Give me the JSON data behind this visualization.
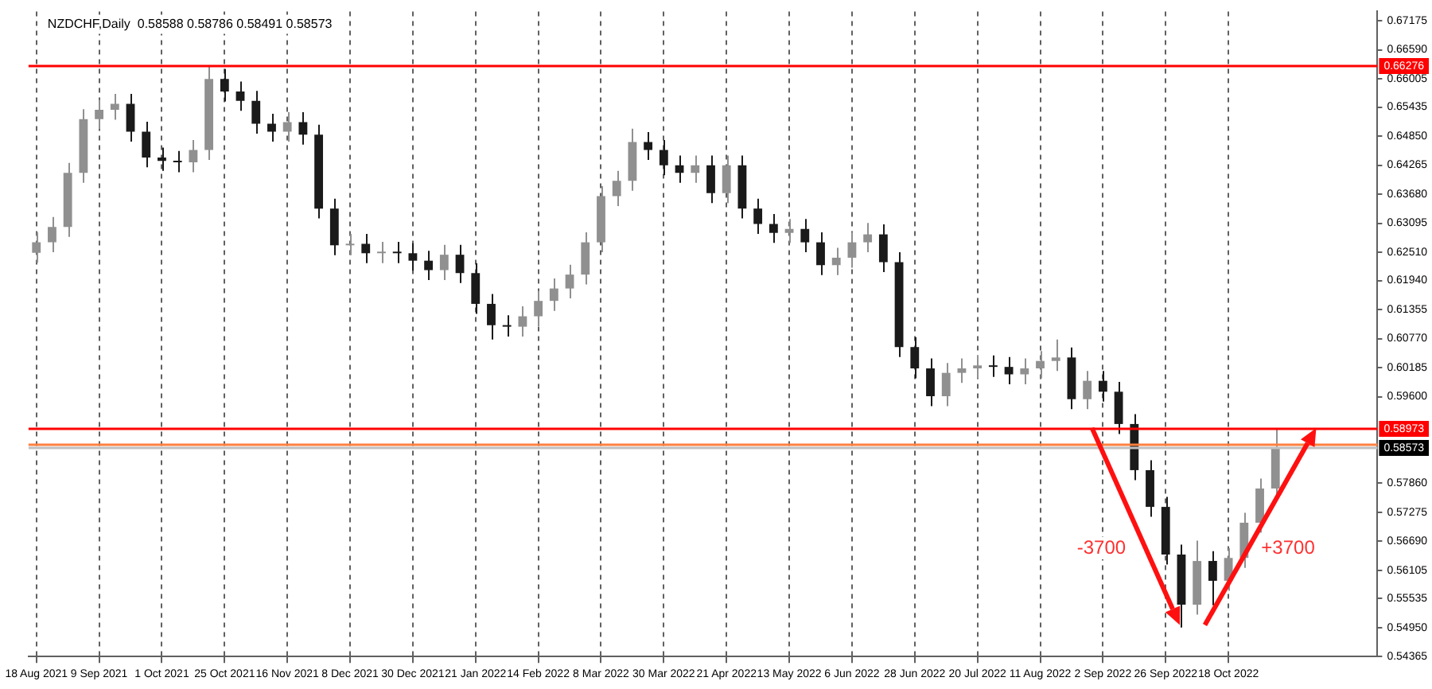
{
  "chart_data": {
    "type": "candlestick",
    "title": "NZDCHF,Daily  0.58588 0.58786 0.58491 0.58573",
    "categories": [
      "18 Aug 2021",
      null,
      null,
      null,
      "9 Sep 2021",
      null,
      null,
      null,
      "1 Oct 2021",
      null,
      null,
      null,
      "25 Oct 2021",
      null,
      null,
      null,
      "16 Nov 2021",
      null,
      null,
      null,
      "8 Dec 2021",
      null,
      null,
      null,
      "30 Dec 2021",
      null,
      null,
      null,
      "21 Jan 2022",
      null,
      null,
      null,
      "14 Feb 2022",
      null,
      null,
      null,
      "8 Mar 2022",
      null,
      null,
      null,
      "30 Mar 2022",
      null,
      null,
      null,
      "21 Apr 2022",
      null,
      null,
      null,
      "13 May 2022",
      null,
      null,
      null,
      "6 Jun 2022",
      null,
      null,
      null,
      "28 Jun 2022",
      null,
      null,
      null,
      "20 Jul 2022",
      null,
      null,
      null,
      "11 Aug 2022",
      null,
      null,
      null,
      "2 Sep 2022",
      null,
      null,
      null,
      "26 Sep 2022",
      null,
      null,
      null,
      "18 Oct 2022",
      null,
      null,
      null,
      null,
      null,
      null,
      null,
      null,
      null
    ],
    "colors": [
      "#909090",
      "#909090",
      "#909090",
      "#909090",
      "#909090",
      "#909090",
      "#1a1a1a",
      "#1a1a1a",
      "#1a1a1a",
      "#1a1a1a",
      "#909090",
      "#909090",
      "#1a1a1a",
      "#1a1a1a",
      "#1a1a1a",
      "#1a1a1a",
      "#909090",
      "#1a1a1a",
      "#1a1a1a",
      "#1a1a1a",
      "#909090",
      "#1a1a1a",
      "#909090",
      "#1a1a1a",
      "#1a1a1a",
      "#1a1a1a",
      "#909090",
      "#1a1a1a",
      "#1a1a1a",
      "#1a1a1a",
      "#1a1a1a",
      "#909090",
      "#909090",
      "#909090",
      "#909090",
      "#909090",
      "#909090",
      "#909090",
      "#909090",
      "#1a1a1a",
      "#1a1a1a",
      "#1a1a1a",
      "#909090",
      "#1a1a1a",
      "#909090",
      "#1a1a1a",
      "#1a1a1a",
      "#1a1a1a",
      "#909090",
      "#1a1a1a",
      "#1a1a1a",
      "#909090",
      "#909090",
      "#909090",
      "#1a1a1a",
      "#1a1a1a",
      "#1a1a1a",
      "#1a1a1a",
      "#909090",
      "#909090",
      "#909090",
      "#1a1a1a",
      "#1a1a1a",
      "#909090",
      "#909090",
      "#909090",
      "#1a1a1a",
      "#909090",
      "#1a1a1a",
      "#1a1a1a",
      "#1a1a1a",
      "#1a1a1a",
      "#1a1a1a",
      "#1a1a1a",
      "#909090",
      "#1a1a1a",
      "#909090",
      "#909090",
      "#909090",
      "#909090",
      null,
      null,
      null,
      null,
      null,
      null
    ],
    "ohlc": [
      [
        0.625,
        0.6291,
        0.623,
        0.6271
      ],
      [
        0.6271,
        0.6322,
        0.6251,
        0.6302
      ],
      [
        0.6302,
        0.6431,
        0.6282,
        0.6411
      ],
      [
        0.6411,
        0.6539,
        0.6391,
        0.6519
      ],
      [
        0.6519,
        0.6558,
        0.6499,
        0.6538
      ],
      [
        0.6538,
        0.657,
        0.6518,
        0.655
      ],
      [
        0.655,
        0.657,
        0.6474,
        0.6494
      ],
      [
        0.6494,
        0.6514,
        0.6422,
        0.6442
      ],
      [
        0.6442,
        0.6462,
        0.6415,
        0.6435
      ],
      [
        0.6435,
        0.6455,
        0.6412,
        0.6432
      ],
      [
        0.6432,
        0.6477,
        0.6412,
        0.6457
      ],
      [
        0.6457,
        0.6625,
        0.6437,
        0.66
      ],
      [
        0.66,
        0.662,
        0.6555,
        0.6575
      ],
      [
        0.6575,
        0.6595,
        0.6536,
        0.6556
      ],
      [
        0.6556,
        0.6576,
        0.649,
        0.651
      ],
      [
        0.651,
        0.653,
        0.6474,
        0.6494
      ],
      [
        0.6494,
        0.6533,
        0.6474,
        0.6513
      ],
      [
        0.6513,
        0.6533,
        0.6468,
        0.6488
      ],
      [
        0.6488,
        0.6508,
        0.6319,
        0.6339
      ],
      [
        0.6339,
        0.6359,
        0.6245,
        0.6265
      ],
      [
        0.6265,
        0.6288,
        0.6245,
        0.6268
      ],
      [
        0.6268,
        0.6288,
        0.6229,
        0.6249
      ],
      [
        0.6249,
        0.6272,
        0.6229,
        0.6252
      ],
      [
        0.6252,
        0.6272,
        0.6229,
        0.6249
      ],
      [
        0.6249,
        0.6269,
        0.6214,
        0.6234
      ],
      [
        0.6234,
        0.6254,
        0.6195,
        0.6215
      ],
      [
        0.6215,
        0.6266,
        0.6195,
        0.6246
      ],
      [
        0.6246,
        0.6266,
        0.6189,
        0.6209
      ],
      [
        0.6209,
        0.6229,
        0.6127,
        0.6147
      ],
      [
        0.6147,
        0.6167,
        0.6075,
        0.6104
      ],
      [
        0.6104,
        0.6124,
        0.6081,
        0.6101
      ],
      [
        0.6101,
        0.6142,
        0.6081,
        0.6122
      ],
      [
        0.6122,
        0.6173,
        0.6102,
        0.6153
      ],
      [
        0.6153,
        0.6198,
        0.6133,
        0.6178
      ],
      [
        0.6178,
        0.6226,
        0.6158,
        0.6206
      ],
      [
        0.6206,
        0.6291,
        0.6186,
        0.6271
      ],
      [
        0.6271,
        0.6384,
        0.6251,
        0.6364
      ],
      [
        0.6364,
        0.6415,
        0.6344,
        0.6395
      ],
      [
        0.6395,
        0.65,
        0.6375,
        0.6473
      ],
      [
        0.6473,
        0.6493,
        0.6437,
        0.6457
      ],
      [
        0.6457,
        0.6477,
        0.6406,
        0.6426
      ],
      [
        0.6426,
        0.6446,
        0.6391,
        0.6411
      ],
      [
        0.6411,
        0.6446,
        0.6391,
        0.6426
      ],
      [
        0.6426,
        0.6446,
        0.635,
        0.637
      ],
      [
        0.637,
        0.6446,
        0.635,
        0.6426
      ],
      [
        0.6426,
        0.6446,
        0.6319,
        0.6339
      ],
      [
        0.6339,
        0.6359,
        0.6288,
        0.6308
      ],
      [
        0.6308,
        0.6328,
        0.627,
        0.629
      ],
      [
        0.629,
        0.6318,
        0.627,
        0.6298
      ],
      [
        0.6298,
        0.6318,
        0.6251,
        0.6271
      ],
      [
        0.6271,
        0.6291,
        0.6205,
        0.6225
      ],
      [
        0.6225,
        0.626,
        0.6205,
        0.624
      ],
      [
        0.624,
        0.6291,
        0.622,
        0.6271
      ],
      [
        0.6271,
        0.631,
        0.6251,
        0.6287
      ],
      [
        0.6287,
        0.6307,
        0.6211,
        0.6231
      ],
      [
        0.6231,
        0.6251,
        0.604,
        0.606
      ],
      [
        0.606,
        0.608,
        0.5997,
        0.6017
      ],
      [
        0.6017,
        0.6037,
        0.5941,
        0.5961
      ],
      [
        0.5961,
        0.6028,
        0.5941,
        0.6008
      ],
      [
        0.6008,
        0.6037,
        0.5988,
        0.6017
      ],
      [
        0.6017,
        0.6043,
        0.5997,
        0.6023
      ],
      [
        0.6023,
        0.6043,
        0.6,
        0.602
      ],
      [
        0.602,
        0.604,
        0.5985,
        0.6005
      ],
      [
        0.6005,
        0.6037,
        0.5985,
        0.6017
      ],
      [
        0.6017,
        0.6052,
        0.5997,
        0.6032
      ],
      [
        0.6032,
        0.6075,
        0.6012,
        0.6039
      ],
      [
        0.6039,
        0.6059,
        0.5935,
        0.5955
      ],
      [
        0.5955,
        0.6012,
        0.5935,
        0.5992
      ],
      [
        0.5992,
        0.6012,
        0.595,
        0.597
      ],
      [
        0.597,
        0.599,
        0.5885,
        0.5905
      ],
      [
        0.5905,
        0.5925,
        0.5792,
        0.5812
      ],
      [
        0.5812,
        0.5832,
        0.5718,
        0.5738
      ],
      [
        0.5738,
        0.5758,
        0.5622,
        0.5642
      ],
      [
        0.5642,
        0.5662,
        0.5495,
        0.5541
      ],
      [
        0.5541,
        0.567,
        0.5521,
        0.5629
      ],
      [
        0.5629,
        0.5649,
        0.554,
        0.5589
      ],
      [
        0.5589,
        0.5655,
        0.5569,
        0.5635
      ],
      [
        0.5635,
        0.5726,
        0.5615,
        0.5706
      ],
      [
        0.5706,
        0.5795,
        0.5686,
        0.5775
      ],
      [
        0.5775,
        0.5897,
        0.5755,
        0.5857
      ],
      null,
      null,
      null,
      null,
      null,
      null
    ],
    "ylim": [
      0.54365,
      0.67361
    ],
    "yticks": [
      {
        "value": 0.67175,
        "label": "0.67175"
      },
      {
        "value": 0.6659,
        "label": "0.66590"
      },
      {
        "value": 0.66005,
        "label": "0.66005"
      },
      {
        "value": 0.65435,
        "label": "0.65435"
      },
      {
        "value": 0.6485,
        "label": "0.64850"
      },
      {
        "value": 0.64265,
        "label": "0.64265"
      },
      {
        "value": 0.6368,
        "label": "0.63680"
      },
      {
        "value": 0.63095,
        "label": "0.63095"
      },
      {
        "value": 0.6251,
        "label": "0.62510"
      },
      {
        "value": 0.6194,
        "label": "0.61940"
      },
      {
        "value": 0.61355,
        "label": "0.61355"
      },
      {
        "value": 0.6077,
        "label": "0.60770"
      },
      {
        "value": 0.60185,
        "label": "0.60185"
      },
      {
        "value": 0.596,
        "label": "0.59600"
      },
      {
        "value": 0.5786,
        "label": "0.57860"
      },
      {
        "value": 0.57275,
        "label": "0.57275"
      },
      {
        "value": 0.5669,
        "label": "0.56690"
      },
      {
        "value": 0.56105,
        "label": "0.56105"
      },
      {
        "value": 0.55535,
        "label": "0.55535"
      },
      {
        "value": 0.5495,
        "label": "0.54950"
      },
      {
        "value": 0.54365,
        "label": "0.54365"
      }
    ],
    "ref_lines": [
      {
        "axis": "y",
        "value": 0.66276,
        "label": "0.66276",
        "color": "#ff0000"
      },
      {
        "axis": "y",
        "value": 0.58973,
        "label": "0.58973",
        "color": "#ff0000"
      },
      {
        "axis": "y",
        "value": 0.5865,
        "color": "#ff8040"
      },
      {
        "axis": "y",
        "value": 0.58573,
        "label": "0.58573",
        "color": "#c0c0c0"
      }
    ],
    "annotations": [
      "-3700",
      "+3700"
    ],
    "grid": "x",
    "legend": false
  }
}
